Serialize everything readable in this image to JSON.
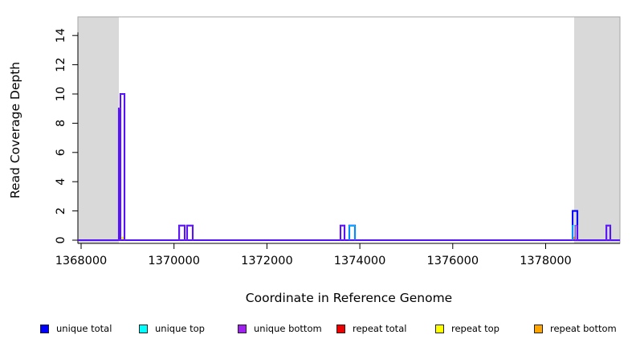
{
  "chart_data": {
    "type": "area",
    "title": "",
    "xlabel": "Coordinate in Reference Genome",
    "ylabel": "Read Coverage Depth",
    "xlim": [
      1367930,
      1379600
    ],
    "ylim": [
      0,
      15.3
    ],
    "x_ticks": [
      1368000,
      1370000,
      1372000,
      1374000,
      1376000,
      1378000
    ],
    "y_ticks": [
      0,
      2,
      4,
      6,
      8,
      10,
      12,
      14
    ],
    "grid": false,
    "legend_position": "bottom",
    "plot_box_color": "#a6a6a6",
    "axis_color": "#000000",
    "shaded_regions": [
      {
        "x0": 1367930,
        "x1": 1368812,
        "color": "#d9d9d9"
      },
      {
        "x0": 1378615,
        "x1": 1379600,
        "color": "#d9d9d9"
      }
    ],
    "series": [
      {
        "name": "repeat total",
        "color": "#ee0000",
        "width": 2,
        "baseline": false,
        "segments": []
      },
      {
        "name": "repeat top",
        "color": "#ffff00",
        "width": 2,
        "baseline": false,
        "segments": [
          {
            "x0": 1368860,
            "x1": 1368900,
            "h": 0.18
          }
        ]
      },
      {
        "name": "repeat bottom",
        "color": "#ffa500",
        "width": 2,
        "baseline": false,
        "segments": [
          {
            "x0": 1378586,
            "x1": 1378622,
            "h": 0.18
          }
        ]
      },
      {
        "name": "unique total",
        "color": "#0000ff",
        "width": 2.1,
        "baseline": true,
        "segments": [
          {
            "x0": 1368812,
            "x1": 1368847,
            "h": 9
          },
          {
            "x0": 1368847,
            "x1": 1368933,
            "h": 10
          },
          {
            "x0": 1370110,
            "x1": 1370230,
            "h": 1
          },
          {
            "x0": 1370282,
            "x1": 1370403,
            "h": 1
          },
          {
            "x0": 1373584,
            "x1": 1373670,
            "h": 1
          },
          {
            "x0": 1373774,
            "x1": 1373895,
            "h": 1
          },
          {
            "x0": 1378581,
            "x1": 1378684,
            "h": 2
          },
          {
            "x0": 1379307,
            "x1": 1379393,
            "h": 1
          }
        ]
      },
      {
        "name": "unique top",
        "color": "#00ffff",
        "width": 1.1,
        "baseline": true,
        "segments": [
          {
            "x0": 1373774,
            "x1": 1373895,
            "h": 1
          },
          {
            "x0": 1378581,
            "x1": 1378640,
            "h": 1
          }
        ]
      },
      {
        "name": "unique bottom",
        "color": "#a020f0",
        "width": 1.1,
        "baseline": true,
        "segments": [
          {
            "x0": 1368812,
            "x1": 1368847,
            "h": 9
          },
          {
            "x0": 1368847,
            "x1": 1368933,
            "h": 10
          },
          {
            "x0": 1370110,
            "x1": 1370230,
            "h": 1
          },
          {
            "x0": 1370282,
            "x1": 1370403,
            "h": 1
          },
          {
            "x0": 1373584,
            "x1": 1373670,
            "h": 1
          },
          {
            "x0": 1378636,
            "x1": 1378684,
            "h": 1
          },
          {
            "x0": 1379307,
            "x1": 1379393,
            "h": 1
          }
        ]
      }
    ],
    "legend": [
      {
        "label": "unique total",
        "color": "#0000ff"
      },
      {
        "label": "unique top",
        "color": "#00ffff"
      },
      {
        "label": "unique bottom",
        "color": "#a020f0"
      },
      {
        "label": "repeat total",
        "color": "#ee0000"
      },
      {
        "label": "repeat top",
        "color": "#ffff00"
      },
      {
        "label": "repeat bottom",
        "color": "#ffa500"
      }
    ]
  }
}
